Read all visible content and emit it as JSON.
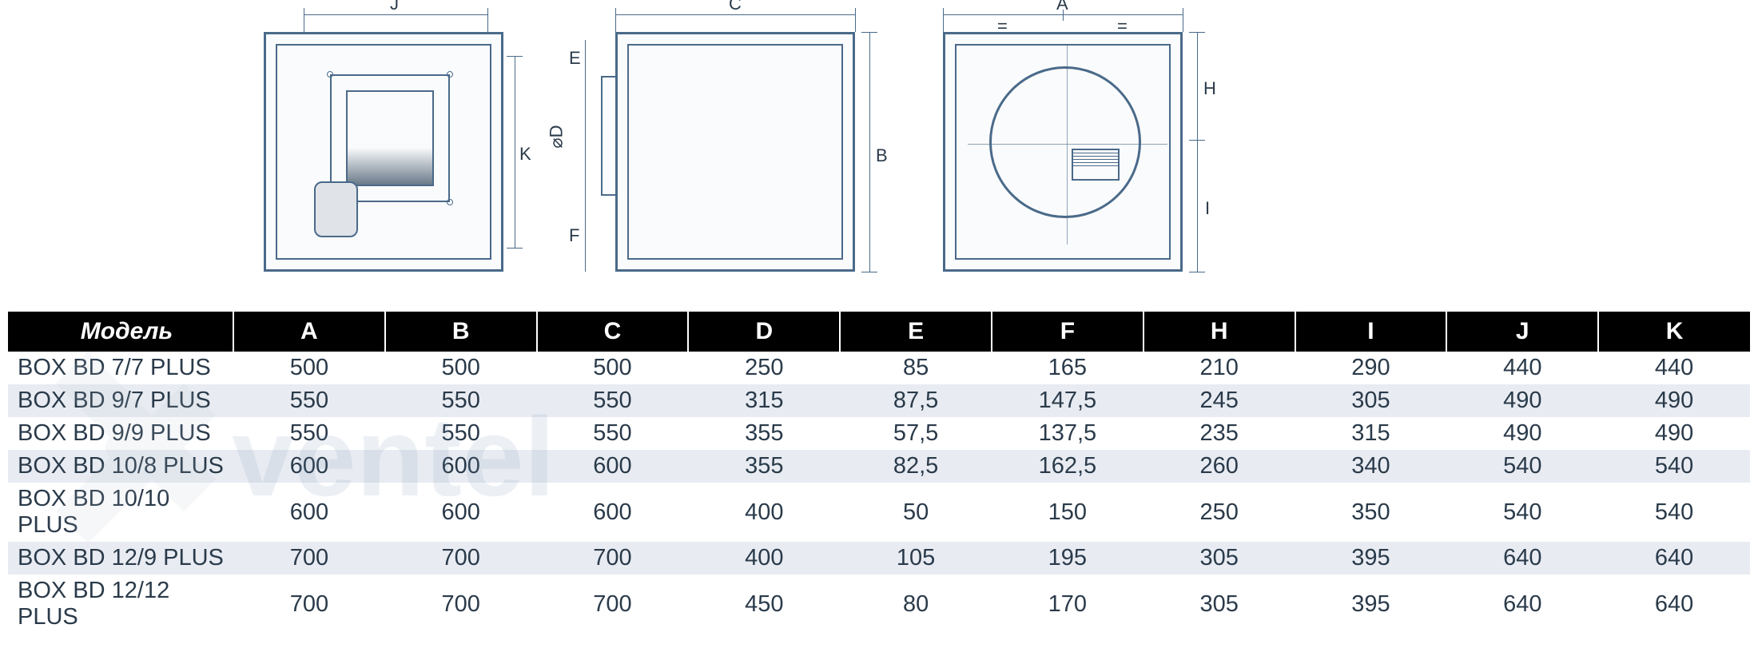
{
  "diagrams": {
    "view1": {
      "dim_j": "J",
      "dim_k": "K"
    },
    "view2": {
      "dim_c": "C",
      "dim_b": "B",
      "dim_d": "⌀D",
      "dim_e": "E",
      "dim_f": "F"
    },
    "view3": {
      "dim_a": "A",
      "dim_eq1": "=",
      "dim_eq2": "=",
      "dim_h": "H",
      "dim_i": "I"
    },
    "line_color": "#4a6a8a",
    "fill_color": "#fafbfc"
  },
  "table": {
    "headers": [
      "Модель",
      "A",
      "B",
      "C",
      "D",
      "E",
      "F",
      "H",
      "I",
      "J",
      "K"
    ],
    "header_bg": "#000000",
    "header_fg": "#ffffff",
    "row_even_bg": "#e8ecf2",
    "row_odd_bg": "#ffffff",
    "text_color": "#2a3a4a",
    "rows": [
      [
        "BOX BD 7/7 PLUS",
        "500",
        "500",
        "500",
        "250",
        "85",
        "165",
        "210",
        "290",
        "440",
        "440"
      ],
      [
        "BOX BD 9/7 PLUS",
        "550",
        "550",
        "550",
        "315",
        "87,5",
        "147,5",
        "245",
        "305",
        "490",
        "490"
      ],
      [
        "BOX BD 9/9 PLUS",
        "550",
        "550",
        "550",
        "355",
        "57,5",
        "137,5",
        "235",
        "315",
        "490",
        "490"
      ],
      [
        "BOX BD 10/8 PLUS",
        "600",
        "600",
        "600",
        "355",
        "82,5",
        "162,5",
        "260",
        "340",
        "540",
        "540"
      ],
      [
        "BOX BD 10/10 PLUS",
        "600",
        "600",
        "600",
        "400",
        "50",
        "150",
        "250",
        "350",
        "540",
        "540"
      ],
      [
        "BOX BD 12/9 PLUS",
        "700",
        "700",
        "700",
        "400",
        "105",
        "195",
        "305",
        "395",
        "640",
        "640"
      ],
      [
        "BOX BD 12/12 PLUS",
        "700",
        "700",
        "700",
        "450",
        "80",
        "170",
        "305",
        "395",
        "640",
        "640"
      ]
    ]
  },
  "watermark": {
    "text": "ventel",
    "color": "#6a8ab0"
  }
}
